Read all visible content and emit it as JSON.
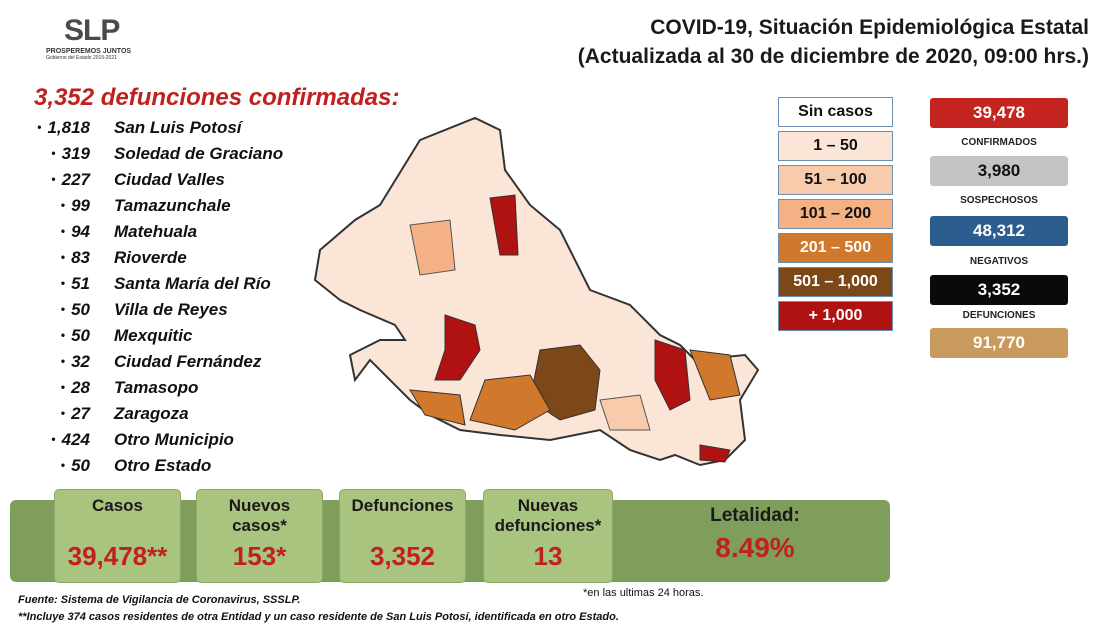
{
  "header": {
    "logo": "SLP",
    "motto": "PROSPEREMOS JUNTOS",
    "government": "Gobierno del Estado 2015-2021",
    "title": "COVID-19, Situación Epidemiológica Estatal",
    "subtitle": "(Actualizada al 30 de diciembre de 2020, 09:00 hrs.)"
  },
  "deaths": {
    "heading": "3,352 defunciones confirmadas:",
    "items": [
      {
        "value": "1,818",
        "name": "San Luis Potosí"
      },
      {
        "value": "319",
        "name": "Soledad de Graciano"
      },
      {
        "value": "227",
        "name": "Ciudad Valles"
      },
      {
        "value": "99",
        "name": "Tamazunchale"
      },
      {
        "value": "94",
        "name": "Matehuala"
      },
      {
        "value": "83",
        "name": "Rioverde"
      },
      {
        "value": "51",
        "name": "Santa María del Río"
      },
      {
        "value": "50",
        "name": "Villa de Reyes"
      },
      {
        "value": "50",
        "name": "Mexquitic"
      },
      {
        "value": "32",
        "name": "Ciudad Fernández"
      },
      {
        "value": "28",
        "name": "Tamasopo"
      },
      {
        "value": "27",
        "name": "Zaragoza"
      },
      {
        "value": "424",
        "name": "Otro Municipio"
      },
      {
        "value": "50",
        "name": "Otro Estado"
      }
    ]
  },
  "legend": [
    {
      "label": "Sin casos",
      "color": "#ffffff"
    },
    {
      "label": "1 – 50",
      "color": "#fbe5d6"
    },
    {
      "label": "51 – 100",
      "color": "#f8cbad"
    },
    {
      "label": "101 – 200",
      "color": "#f4b183"
    },
    {
      "label": "201 – 500",
      "color": "#d0782c"
    },
    {
      "label": "501 – 1,000",
      "color": "#7c4818"
    },
    {
      "label": "+ 1,000",
      "color": "#b01212"
    }
  ],
  "stats": [
    {
      "value": "39,478",
      "label": "CONFIRMADOS",
      "color": "#c42520"
    },
    {
      "value": "3,980",
      "label": "SOSPECHOSOS",
      "color": "#c4c4c4"
    },
    {
      "value": "48,312",
      "label": "NEGATIVOS",
      "color": "#2b5d8e"
    },
    {
      "value": "3,352",
      "label": "DEFUNCIONES",
      "color": "#0a0a0a"
    },
    {
      "value": "91,770",
      "color": "#c99a5e"
    }
  ],
  "banner": [
    {
      "label": "Casos",
      "value": "39,478**"
    },
    {
      "label": "Nuevos casos*",
      "value": "153*"
    },
    {
      "label": "Defunciones",
      "value": "3,352"
    },
    {
      "label": "Nuevas defunciones*",
      "value": "13"
    },
    {
      "label": "Letalidad:",
      "value": "8.49%"
    }
  ],
  "footnotes": {
    "last24": "*en las ultimas 24 horas.",
    "source": "Fuente: Sistema de Vigilancia de Coronavirus, SSSLP.",
    "note": "**Incluye 374 casos residentes de otra Entidad y un caso residente de San Luis Potosí, identificada en otro Estado."
  }
}
